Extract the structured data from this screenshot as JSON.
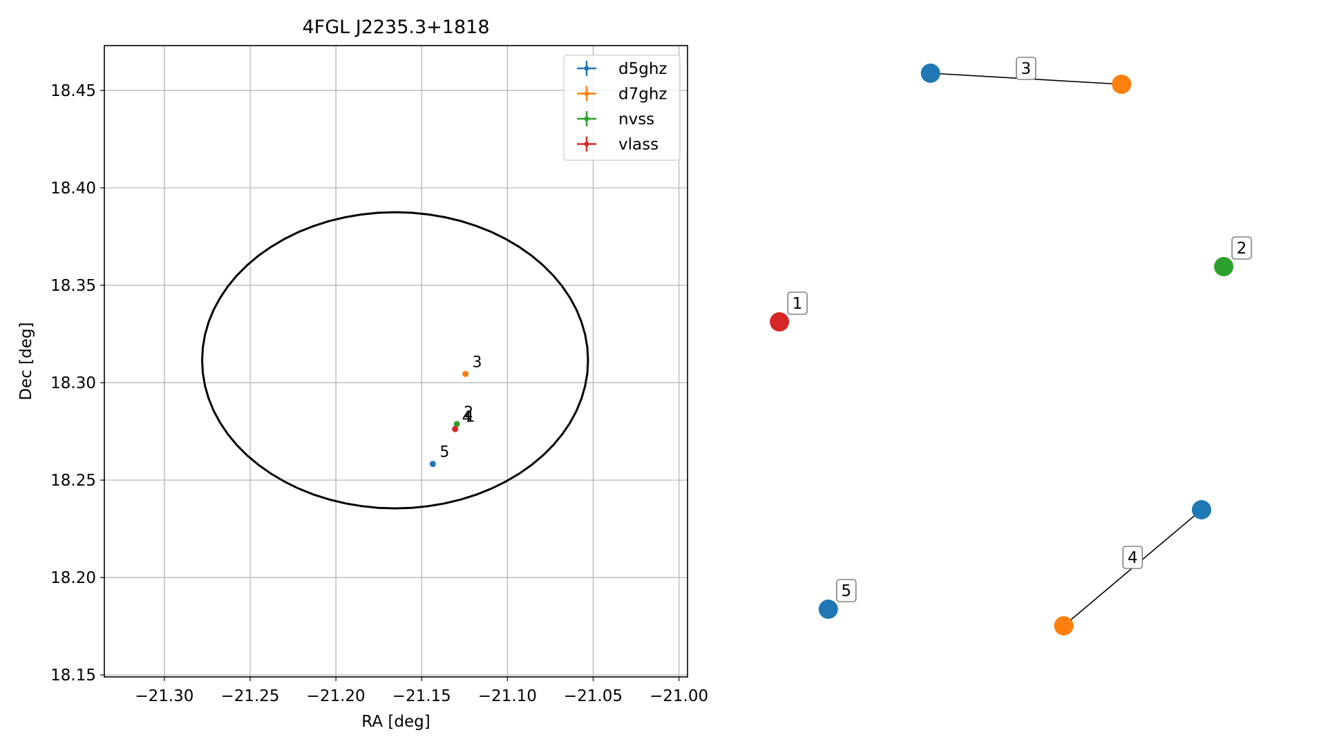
{
  "chart_data": [
    {
      "type": "scatter",
      "title": "4FGL J2235.3+1818",
      "xlabel": "RA [deg]",
      "ylabel": "Dec [deg]",
      "xlim": [
        -21.335,
        -20.995
      ],
      "ylim": [
        18.149,
        18.473
      ],
      "grid": true,
      "legend_position": "top-right",
      "x_ticks": [
        -21.3,
        -21.25,
        -21.2,
        -21.15,
        -21.1,
        -21.05,
        -21.0
      ],
      "x_tick_labels": [
        "−21.30",
        "−21.25",
        "−21.20",
        "−21.15",
        "−21.10",
        "−21.05",
        "−21.00"
      ],
      "y_ticks": [
        18.15,
        18.2,
        18.25,
        18.3,
        18.35,
        18.4,
        18.45
      ],
      "y_tick_labels": [
        "18.15",
        "18.20",
        "18.25",
        "18.30",
        "18.35",
        "18.40",
        "18.45"
      ],
      "ellipse": {
        "center": [
          -21.1655,
          18.3115
        ],
        "half_width": 0.1125,
        "half_height": 0.076,
        "color": "#000000"
      },
      "series": [
        {
          "name": "d5ghz",
          "color": "#1f77b4",
          "points": [
            {
              "x": -21.1435,
              "y": 18.2583,
              "label": "5"
            }
          ]
        },
        {
          "name": "d7ghz",
          "color": "#ff7f0e",
          "points": [
            {
              "x": -21.1245,
              "y": 18.3045,
              "label": "3"
            }
          ]
        },
        {
          "name": "nvss",
          "color": "#2ca02c",
          "points": [
            {
              "x": -21.1295,
              "y": 18.2788,
              "label": "2"
            }
          ]
        },
        {
          "name": "vlass",
          "color": "#d62728",
          "points": [
            {
              "x": -21.1305,
              "y": 18.2762,
              "label": "4"
            }
          ]
        }
      ],
      "extra_labels": [
        {
          "x": -21.1285,
          "y": 18.2765,
          "label": "1"
        }
      ]
    },
    {
      "type": "network",
      "nodes": [
        {
          "label": "1",
          "color": "#d62728",
          "x": 0.0,
          "y": 0.55
        },
        {
          "label": "2",
          "color": "#2ca02c",
          "x": 1.0,
          "y": 0.65
        },
        {
          "label": "3",
          "color": "#1f77b4",
          "x": 0.34,
          "y": 1.0
        },
        {
          "label": "3",
          "color": "#ff7f0e",
          "x": 0.77,
          "y": 0.98
        },
        {
          "label": "4",
          "color": "#1f77b4",
          "x": 0.95,
          "y": 0.21
        },
        {
          "label": "4",
          "color": "#ff7f0e",
          "x": 0.64,
          "y": 0.0
        },
        {
          "label": "5",
          "color": "#1f77b4",
          "x": 0.11,
          "y": 0.03
        }
      ],
      "edges": [
        {
          "from": 2,
          "to": 3,
          "label": "3"
        },
        {
          "from": 4,
          "to": 5,
          "label": "4"
        }
      ]
    }
  ]
}
